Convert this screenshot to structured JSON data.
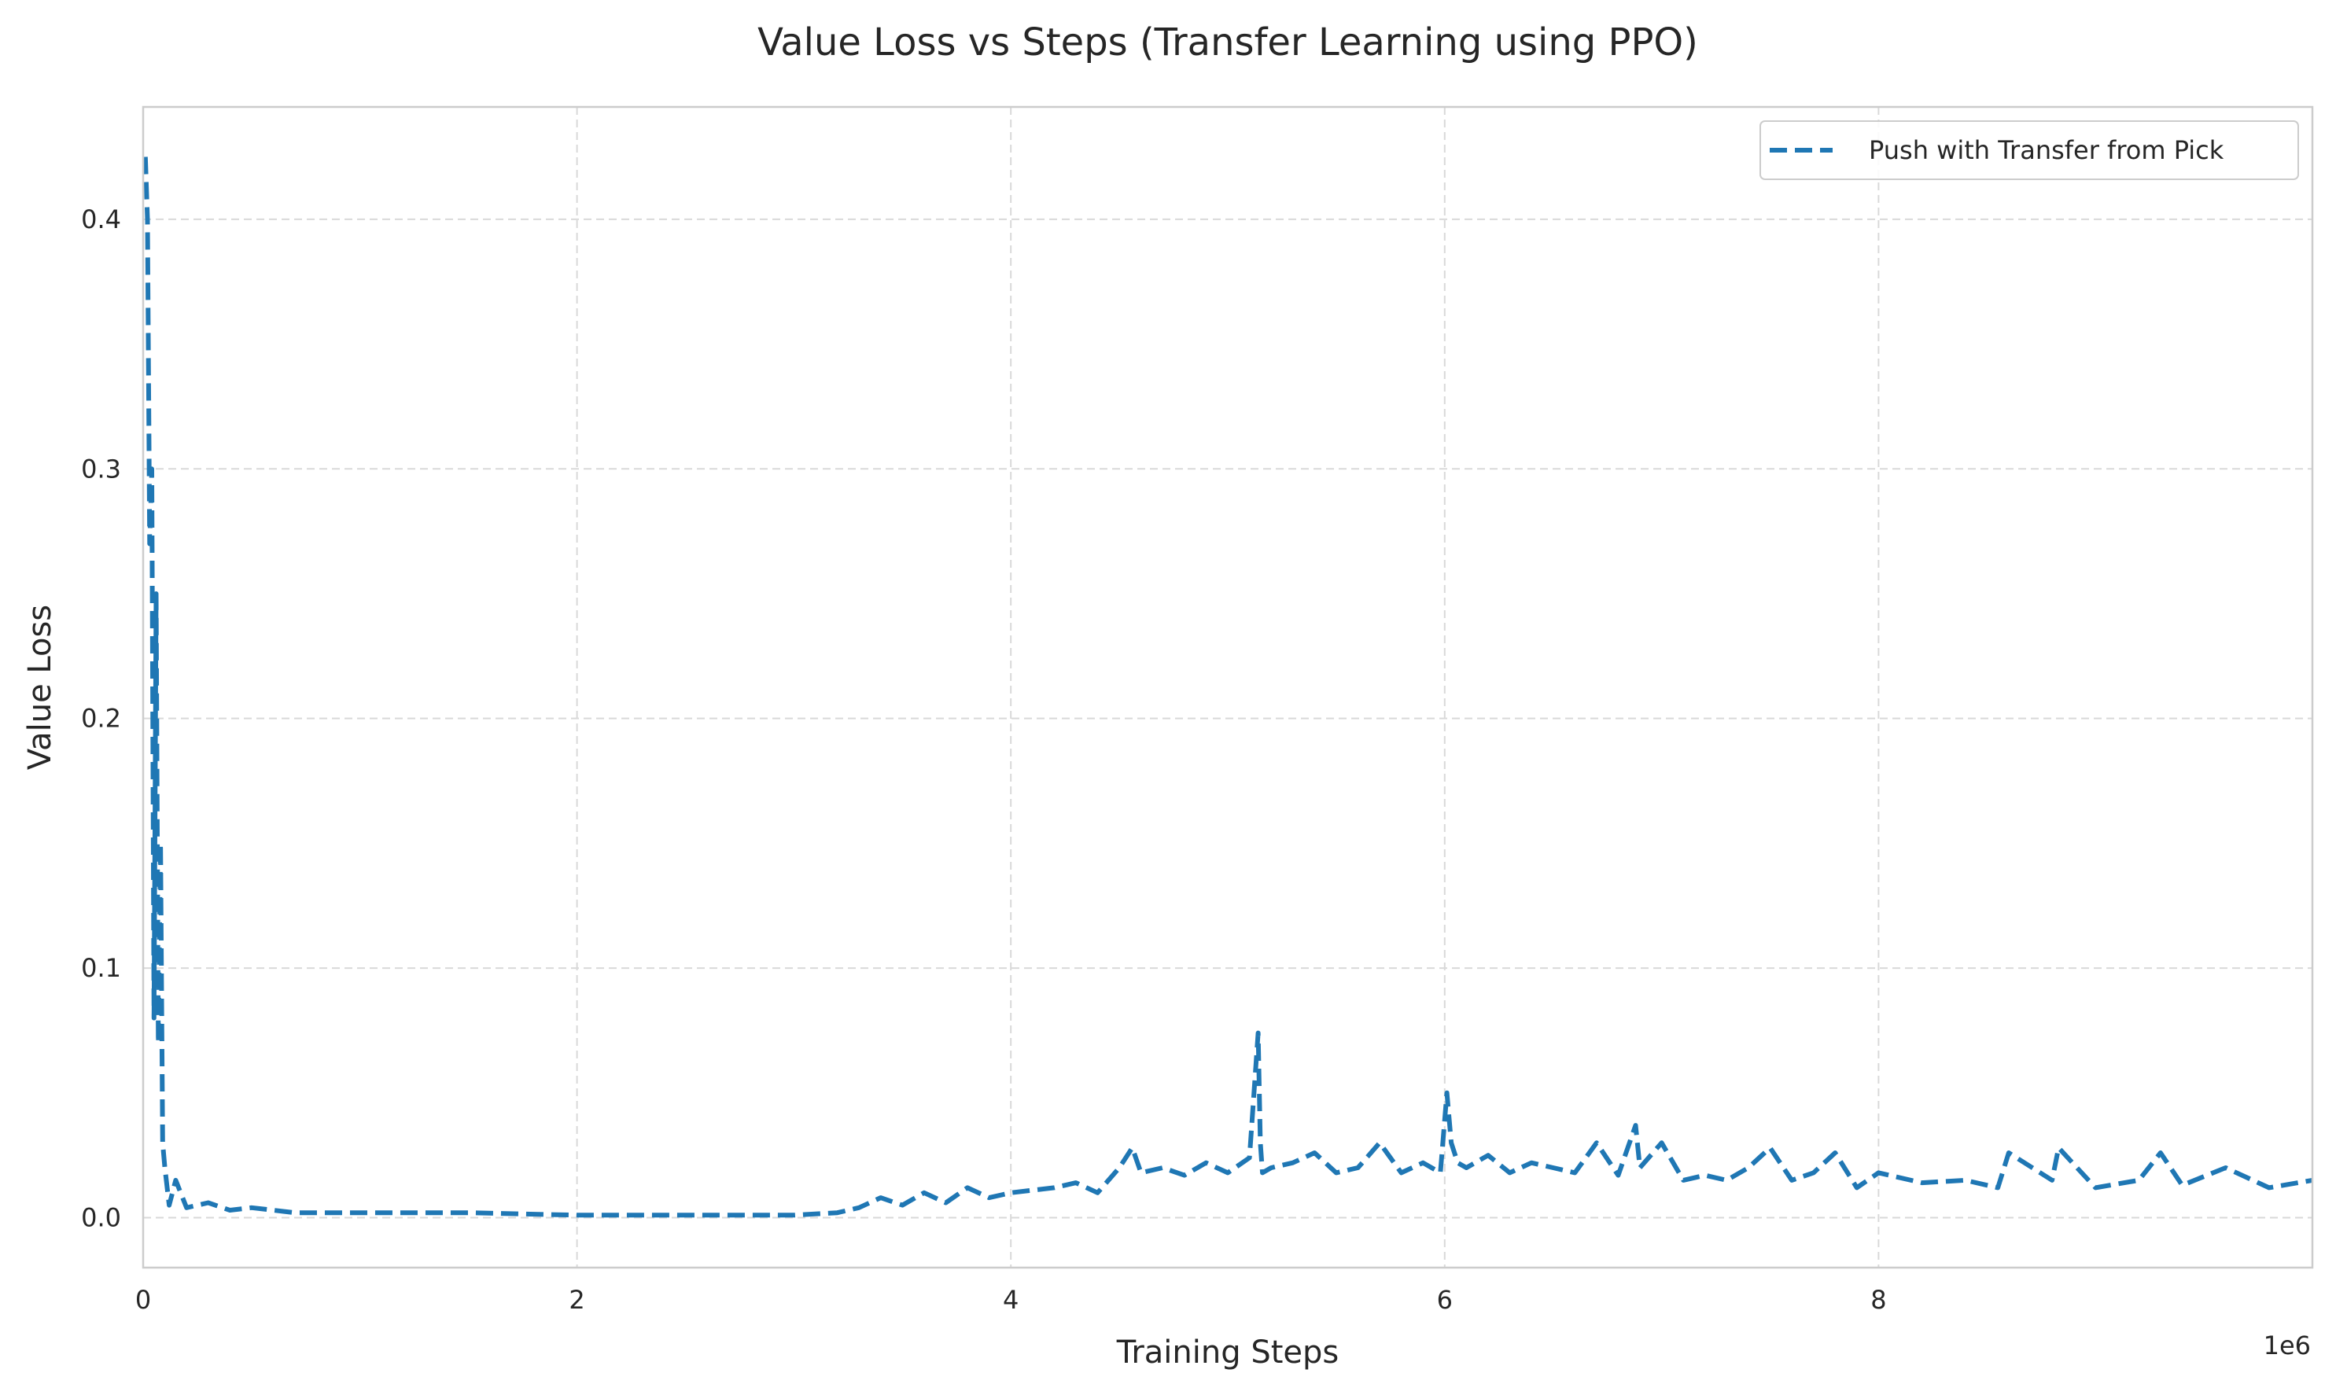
{
  "chart_data": {
    "type": "line",
    "title": "Value Loss vs Steps (Transfer Learning using PPO)",
    "xlabel": "Training Steps",
    "ylabel": "Value Loss",
    "x_offset_label": "1e6",
    "x_tick_labels": [
      "0",
      "2",
      "4",
      "6",
      "8"
    ],
    "x_ticks": [
      0,
      2000000,
      4000000,
      6000000,
      8000000
    ],
    "y_tick_labels": [
      "0.0",
      "0.1",
      "0.2",
      "0.3",
      "0.4"
    ],
    "y_ticks": [
      0.0,
      0.1,
      0.2,
      0.3,
      0.4
    ],
    "xlim": [
      0,
      10000000
    ],
    "ylim": [
      -0.02,
      0.445
    ],
    "grid": true,
    "legend_position": "top-right",
    "series": [
      {
        "name": "Push with Transfer from Pick",
        "color": "#1f77b4",
        "line_style": "dashed",
        "x": [
          10000,
          20000,
          30000,
          40000,
          50000,
          60000,
          70000,
          80000,
          90000,
          100000,
          120000,
          150000,
          200000,
          300000,
          400000,
          500000,
          700000,
          1000000,
          1500000,
          2000000,
          2500000,
          3000000,
          3200000,
          3300000,
          3400000,
          3500000,
          3600000,
          3700000,
          3800000,
          3900000,
          4000000,
          4100000,
          4200000,
          4300000,
          4400000,
          4500000,
          4560000,
          4600000,
          4700000,
          4800000,
          4900000,
          5000000,
          5100000,
          5140000,
          5150000,
          5160000,
          5200000,
          5300000,
          5400000,
          5500000,
          5600000,
          5700000,
          5800000,
          5900000,
          5980000,
          6010000,
          6030000,
          6060000,
          6100000,
          6200000,
          6300000,
          6400000,
          6500000,
          6600000,
          6700000,
          6800000,
          6880000,
          6900000,
          7000000,
          7100000,
          7200000,
          7300000,
          7400000,
          7500000,
          7600000,
          7700000,
          7800000,
          7900000,
          8000000,
          8200000,
          8400000,
          8550000,
          8600000,
          8800000,
          8830000,
          9000000,
          9200000,
          9300000,
          9400000,
          9600000,
          9800000,
          10000000
        ],
        "y": [
          0.425,
          0.4,
          0.27,
          0.3,
          0.08,
          0.25,
          0.07,
          0.15,
          0.03,
          0.02,
          0.005,
          0.015,
          0.004,
          0.006,
          0.003,
          0.004,
          0.002,
          0.002,
          0.002,
          0.001,
          0.001,
          0.001,
          0.002,
          0.004,
          0.008,
          0.005,
          0.01,
          0.006,
          0.012,
          0.008,
          0.01,
          0.011,
          0.012,
          0.014,
          0.01,
          0.02,
          0.028,
          0.018,
          0.02,
          0.017,
          0.022,
          0.018,
          0.024,
          0.074,
          0.03,
          0.018,
          0.02,
          0.022,
          0.026,
          0.018,
          0.02,
          0.03,
          0.018,
          0.022,
          0.018,
          0.05,
          0.03,
          0.022,
          0.02,
          0.025,
          0.018,
          0.022,
          0.02,
          0.018,
          0.03,
          0.017,
          0.037,
          0.02,
          0.03,
          0.015,
          0.017,
          0.015,
          0.02,
          0.028,
          0.015,
          0.018,
          0.026,
          0.012,
          0.018,
          0.014,
          0.015,
          0.012,
          0.026,
          0.015,
          0.028,
          0.012,
          0.015,
          0.026,
          0.013,
          0.02,
          0.012,
          0.015
        ]
      }
    ]
  }
}
